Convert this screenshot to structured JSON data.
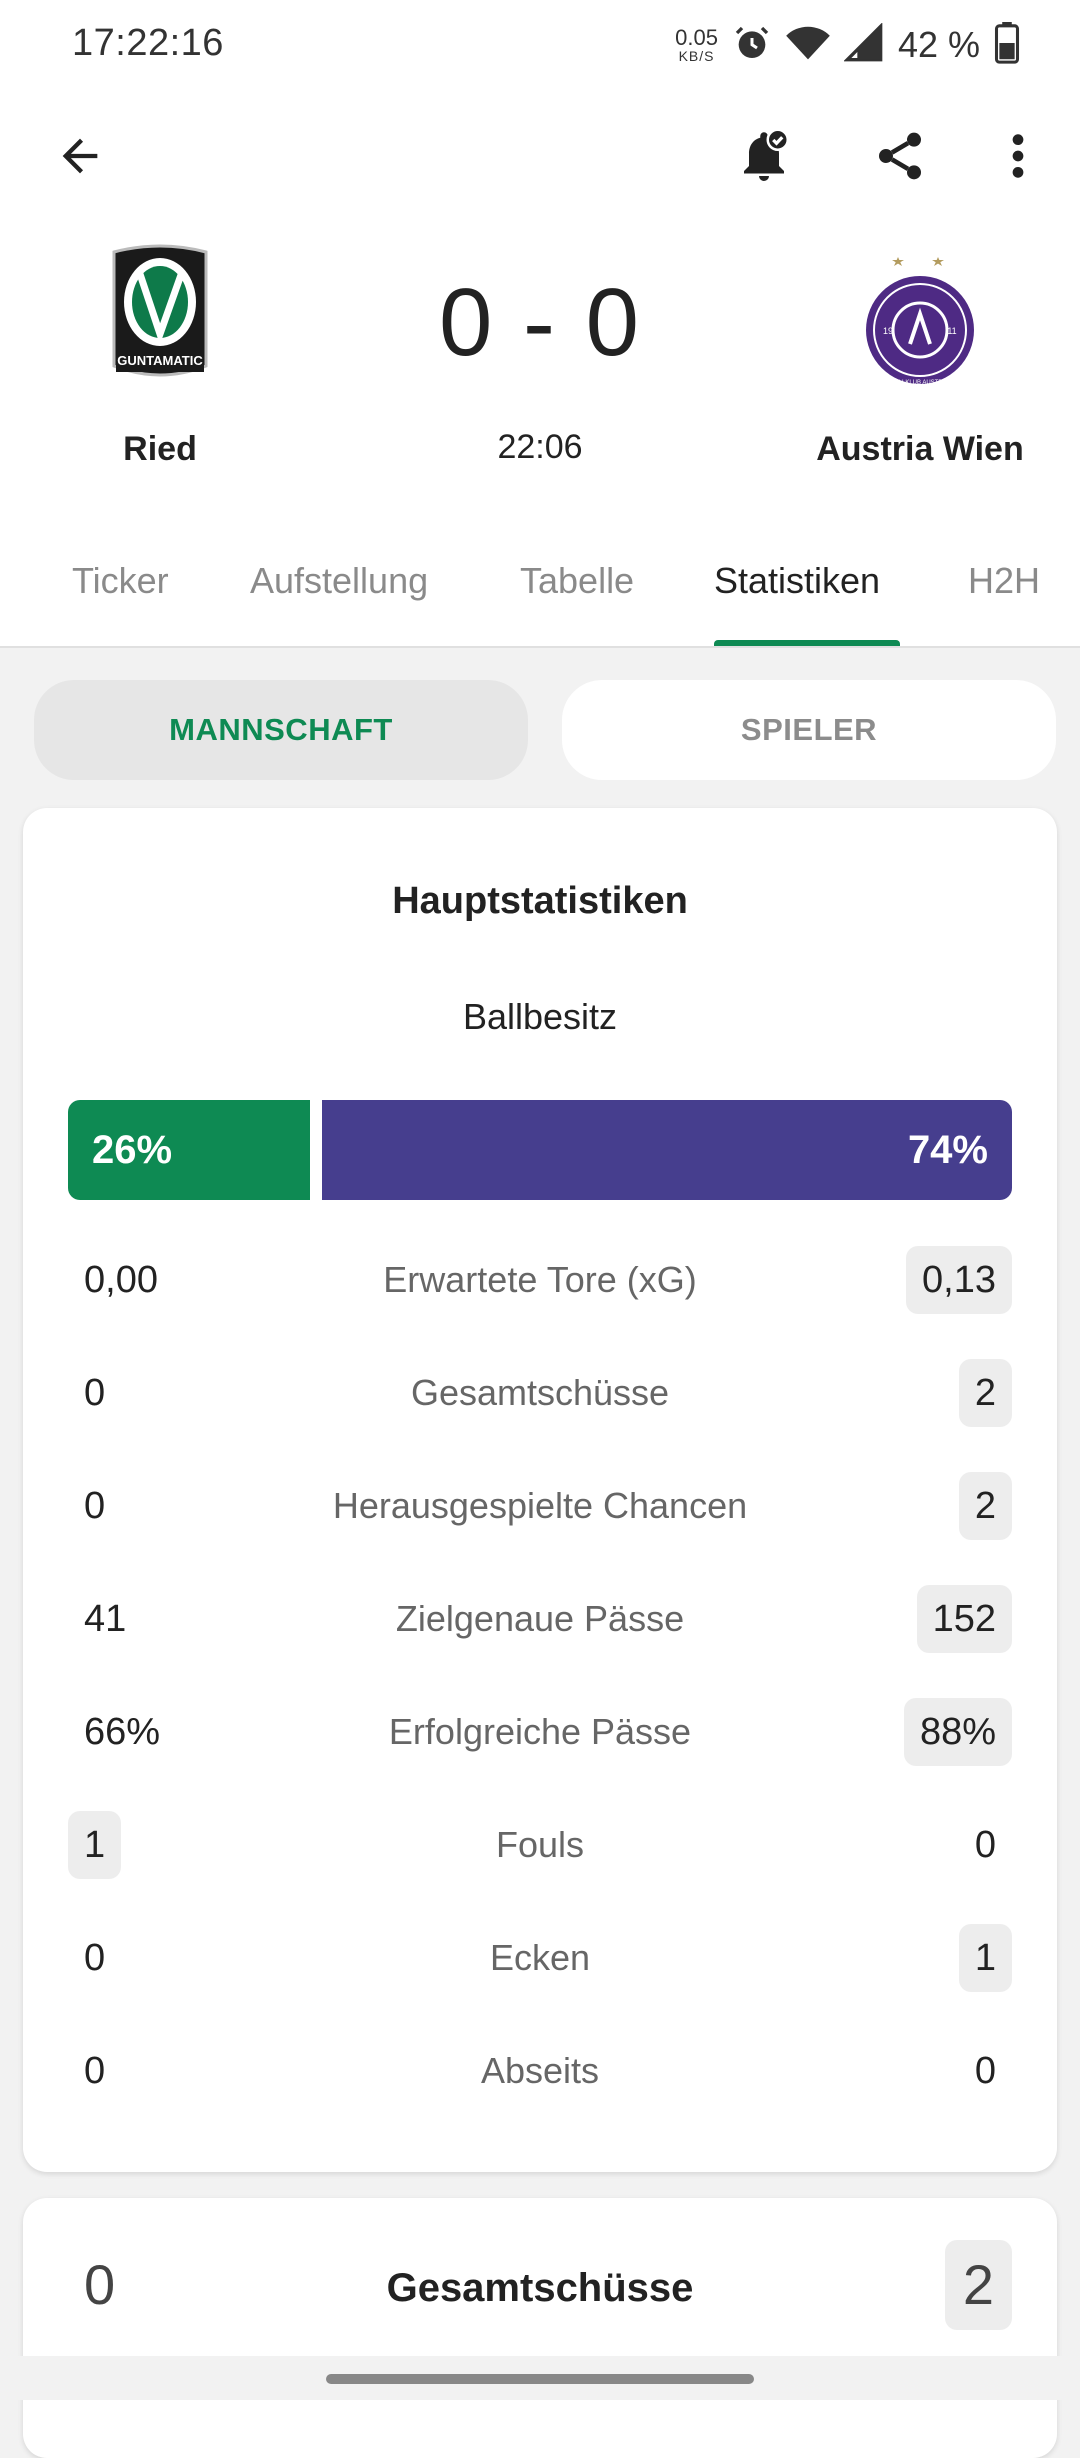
{
  "status_bar": {
    "time": "17:22:16",
    "net_speed_value": "0.05",
    "net_speed_unit": "KB/S",
    "battery_percent": "42 %",
    "icons": [
      "alarm-icon",
      "wifi-icon",
      "signal-icon",
      "battery-icon"
    ]
  },
  "app_bar": {
    "back_icon": "arrow-left-icon",
    "actions": [
      "bell-check-icon",
      "share-icon",
      "more-vert-icon"
    ]
  },
  "match": {
    "home_team": "Ried",
    "away_team": "Austria Wien",
    "home_logo_text": "GUNTAMATIC",
    "away_logo_text": "FUSSBALLKLUB AUSTRIA WIEN",
    "score": "0 - 0",
    "time": "22:06"
  },
  "tabs": [
    "Ticker",
    "Aufstellung",
    "Tabelle",
    "Statistiken",
    "H2H"
  ],
  "active_tab": "Statistiken",
  "segment": {
    "team_label": "MANNSCHAFT",
    "player_label": "SPIELER"
  },
  "main_stats": {
    "title": "Hauptstatistiken",
    "possession_label": "Ballbesitz",
    "possession_home": "26%",
    "possession_away": "74%",
    "possession_home_fraction": 0.26,
    "rows": [
      {
        "label": "Erwartete Tore (xG)",
        "home": "0,00",
        "away": "0,13",
        "highlight": "away"
      },
      {
        "label": "Gesamtschüsse",
        "home": "0",
        "away": "2",
        "highlight": "away"
      },
      {
        "label": "Herausgespielte Chancen",
        "home": "0",
        "away": "2",
        "highlight": "away"
      },
      {
        "label": "Zielgenaue Pässe",
        "home": "41",
        "away": "152",
        "highlight": "away"
      },
      {
        "label": "Erfolgreiche Pässe",
        "home": "66%",
        "away": "88%",
        "highlight": "away"
      },
      {
        "label": "Fouls",
        "home": "1",
        "away": "0",
        "highlight": "home"
      },
      {
        "label": "Ecken",
        "home": "0",
        "away": "1",
        "highlight": "away"
      },
      {
        "label": "Abseits",
        "home": "0",
        "away": "0",
        "highlight": "none"
      }
    ]
  },
  "shots_card": {
    "title": "Gesamtschüsse",
    "home": "0",
    "away": "2"
  },
  "colors": {
    "home_accent": "#0e8a53",
    "away_accent": "#463e8e"
  }
}
